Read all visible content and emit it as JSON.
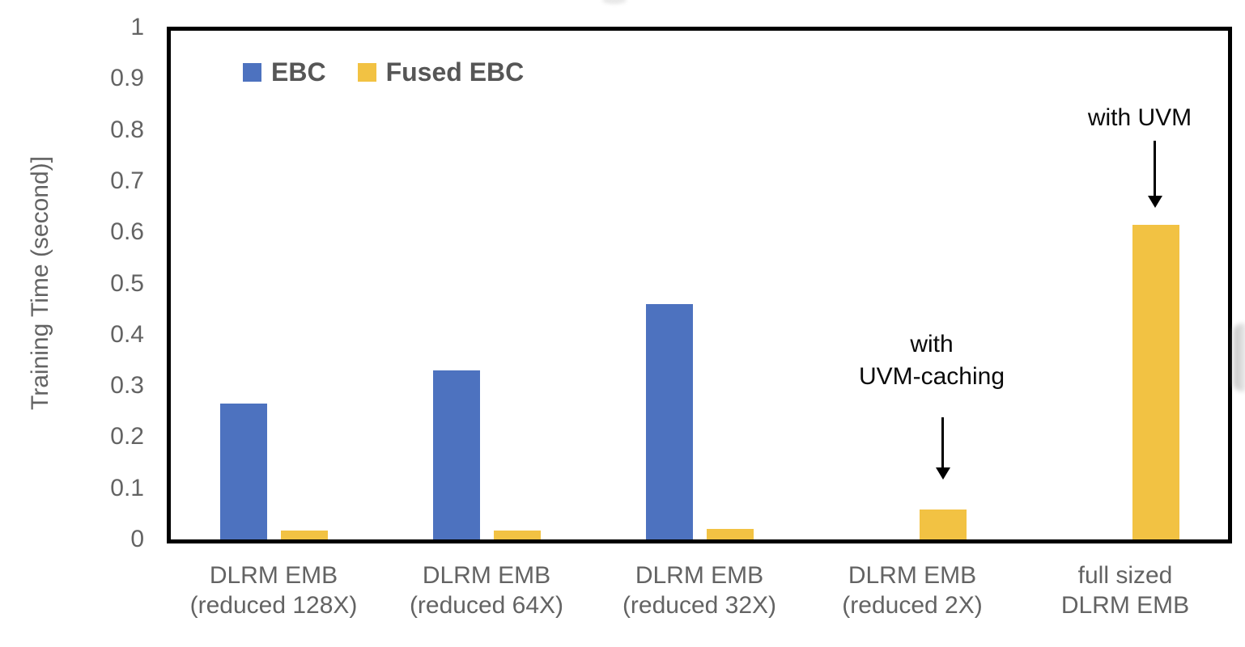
{
  "colors": {
    "ebc_blue": "#4D72BF",
    "fused_ebc_yellow": "#F2C243",
    "axis_text": "#636363",
    "legend_text": "#565656",
    "annotation_text": "#0a0a0a",
    "plot_border": "#000000"
  },
  "chart_data": {
    "type": "bar",
    "title": "",
    "xlabel": "",
    "ylabel": "Training Time (second)]",
    "ylim": [
      0,
      1
    ],
    "grid": false,
    "legend_position": "top-left-inside",
    "y_ticks": [
      0,
      0.1,
      0.2,
      0.3,
      0.4,
      0.5,
      0.6,
      0.7,
      0.8,
      0.9,
      1
    ],
    "y_tick_labels": [
      "0",
      "0.1",
      "0.2",
      "0.3",
      "0.4",
      "0.5",
      "0.6",
      "0.7",
      "0.8",
      "0.9",
      "1"
    ],
    "categories": [
      "DLRM EMB\n(reduced 128X)",
      "DLRM EMB\n(reduced 64X)",
      "DLRM EMB\n(reduced 32X)",
      "DLRM EMB\n(reduced 2X)",
      "full sized\nDLRM EMB"
    ],
    "series": [
      {
        "name": "EBC",
        "color": "#4D72BF",
        "values": [
          0.265,
          0.33,
          0.46,
          null,
          null
        ]
      },
      {
        "name": "Fused EBC",
        "color": "#F2C243",
        "values": [
          0.017,
          0.018,
          0.02,
          0.058,
          0.615
        ]
      }
    ],
    "annotations": [
      {
        "text": "with\nUVM-caching",
        "series": "Fused EBC",
        "category_index": 3
      },
      {
        "text": "with UVM",
        "series": "Fused EBC",
        "category_index": 4
      }
    ]
  }
}
